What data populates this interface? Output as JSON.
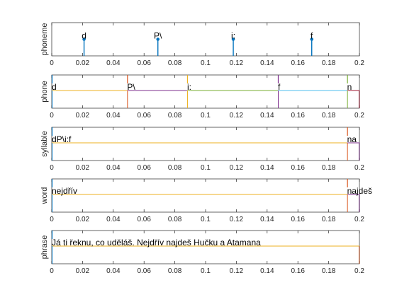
{
  "chart_data": [
    {
      "type": "stem",
      "ylabel": "phoneme",
      "xlim": [
        0,
        0.2
      ],
      "ylim": [
        0,
        1
      ],
      "x_ticks": [
        "0",
        "0.02",
        "0.04",
        "0.06",
        "0.08",
        "0.1",
        "0.12",
        "0.14",
        "0.16",
        "0.18",
        "0.2"
      ],
      "points": [
        {
          "x": 0.021,
          "y": 0.5,
          "label": "d"
        },
        {
          "x": 0.069,
          "y": 0.5,
          "label": "P\\"
        },
        {
          "x": 0.118,
          "y": 0.5,
          "label": "i:"
        },
        {
          "x": 0.169,
          "y": 0.5,
          "label": "f"
        }
      ]
    },
    {
      "type": "segments",
      "ylabel": "phone",
      "xlim": [
        0,
        0.2
      ],
      "ylim": [
        0,
        1
      ],
      "x_ticks": [
        "0",
        "0.02",
        "0.04",
        "0.06",
        "0.08",
        "0.1",
        "0.12",
        "0.14",
        "0.16",
        "0.18",
        "0.2"
      ],
      "segments": [
        {
          "start": 0.0,
          "end": 0.049,
          "label": "d",
          "color": "#edb120",
          "bar_color": "#0072bd"
        },
        {
          "start": 0.049,
          "end": 0.088,
          "label": "P\\",
          "color": "#7e2f8e",
          "bar_color": "#d95319"
        },
        {
          "start": 0.088,
          "end": 0.147,
          "label": "i:",
          "color": "#77ac30",
          "bar_color": "#edb120"
        },
        {
          "start": 0.147,
          "end": 0.192,
          "label": "f",
          "color": "#4dbeee",
          "bar_color": "#7e2f8e"
        },
        {
          "start": 0.192,
          "end": 0.2,
          "label": "n",
          "color": "#a2142f",
          "bar_color": "#77ac30"
        }
      ]
    },
    {
      "type": "segments",
      "ylabel": "syllable",
      "xlim": [
        0,
        0.2
      ],
      "ylim": [
        0,
        1
      ],
      "x_ticks": [
        "0",
        "0.02",
        "0.04",
        "0.06",
        "0.08",
        "0.1",
        "0.12",
        "0.14",
        "0.16",
        "0.18",
        "0.2"
      ],
      "segments": [
        {
          "start": 0.0,
          "end": 0.192,
          "label": "dP\\i:f",
          "color": "#edb120",
          "bar_color": "#0072bd"
        },
        {
          "start": 0.192,
          "end": 0.2,
          "label": "na",
          "color": "#7e2f8e",
          "bar_color": "#d95319"
        }
      ]
    },
    {
      "type": "segments",
      "ylabel": "word",
      "xlim": [
        0,
        0.2
      ],
      "ylim": [
        0,
        1
      ],
      "x_ticks": [
        "0",
        "0.02",
        "0.04",
        "0.06",
        "0.08",
        "0.1",
        "0.12",
        "0.14",
        "0.16",
        "0.18",
        "0.2"
      ],
      "segments": [
        {
          "start": 0.0,
          "end": 0.192,
          "label": "nejdřív",
          "color": "#edb120",
          "bar_color": "#0072bd"
        },
        {
          "start": 0.192,
          "end": 0.2,
          "label": "najdeš",
          "color": "#7e2f8e",
          "bar_color": "#d95319"
        }
      ]
    },
    {
      "type": "segments",
      "ylabel": "phrase",
      "xlim": [
        0,
        0.2
      ],
      "ylim": [
        0,
        1
      ],
      "x_ticks": [
        "0",
        "0.02",
        "0.04",
        "0.06",
        "0.08",
        "0.1",
        "0.12",
        "0.14",
        "0.16",
        "0.18",
        "0.2"
      ],
      "segments": [
        {
          "start": 0.0,
          "end": 0.2,
          "label": "Já ti řeknu, co uděláš. Nejdřív najdeš Hučku a Atamana",
          "color": "#edb120",
          "bar_color": "#0072bd",
          "end_color": "#d95319"
        }
      ]
    }
  ]
}
